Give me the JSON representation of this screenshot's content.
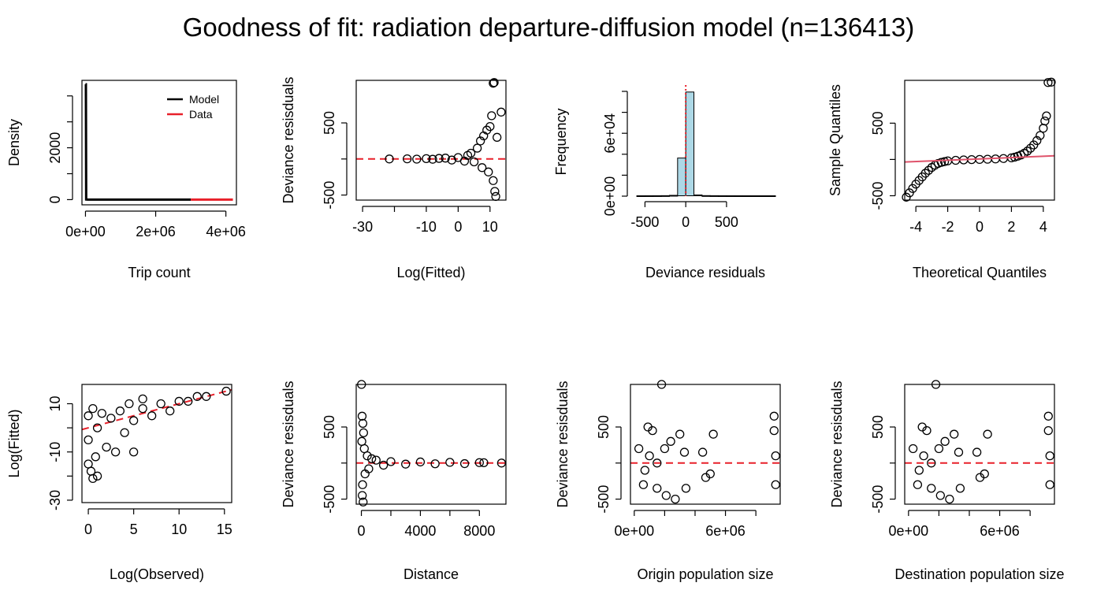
{
  "title": "Goodness of fit: radiation departure-diffusion model (n=136413)",
  "colors": {
    "ink": "#000000",
    "reference": "#e8202a",
    "qqline": "#df536b",
    "histFill": "#add8e6"
  },
  "chart_data": [
    {
      "type": "line",
      "xlabel": "Trip count",
      "ylabel": "Density",
      "xlim": [
        -100000,
        4300000
      ],
      "ylim": [
        -200,
        4600
      ],
      "xticks": [
        0,
        2000000,
        4000000
      ],
      "xtick_labels": [
        "0e+00",
        "2e+06",
        "4e+06"
      ],
      "yticks": [
        0,
        1000,
        2000,
        3000,
        4000
      ],
      "ytick_labels": [
        "0",
        "",
        "2000",
        "",
        ""
      ],
      "legend": {
        "position": "top-right",
        "entries": [
          {
            "label": "Model",
            "color": "#000000"
          },
          {
            "label": "Data",
            "color": "#e8202a"
          }
        ]
      },
      "series": [
        {
          "name": "Model",
          "color": "#000000",
          "x": [
            0,
            12000,
            20000,
            60000,
            3000000
          ],
          "y": [
            4450,
            4450,
            5,
            2,
            0
          ]
        },
        {
          "name": "Data",
          "color": "#e8202a",
          "x": [
            3000000,
            4200000
          ],
          "y": [
            0,
            0
          ]
        }
      ]
    },
    {
      "type": "scatter",
      "xlabel": "Log(Fitted)",
      "ylabel": "Deviance resisduals",
      "xlim": [
        -32,
        15
      ],
      "ylim": [
        -570,
        1090
      ],
      "xticks": [
        -30,
        -20,
        -10,
        0,
        10
      ],
      "xtick_labels": [
        "-30",
        "",
        "-10",
        "0",
        "10"
      ],
      "yticks": [
        -500,
        0,
        500
      ],
      "ytick_labels": [
        "-500",
        "",
        "500"
      ],
      "reference_line": {
        "y": 0,
        "style": "dashed",
        "color": "#e8202a"
      },
      "points": [
        [
          -21.6,
          0
        ],
        [
          -16,
          2
        ],
        [
          -13,
          -2
        ],
        [
          -10,
          5
        ],
        [
          -8,
          -4
        ],
        [
          -6,
          8
        ],
        [
          -4,
          12
        ],
        [
          -2,
          -15
        ],
        [
          0,
          20
        ],
        [
          2,
          -30
        ],
        [
          3,
          50
        ],
        [
          4,
          80
        ],
        [
          5,
          -40
        ],
        [
          6,
          150
        ],
        [
          7,
          250
        ],
        [
          7.5,
          -120
        ],
        [
          8,
          320
        ],
        [
          9,
          400
        ],
        [
          9.5,
          -180
        ],
        [
          10,
          450
        ],
        [
          11,
          -300
        ],
        [
          11.5,
          -450
        ],
        [
          11.8,
          -520
        ],
        [
          11,
          1050
        ],
        [
          11.3,
          1060
        ],
        [
          12.2,
          300
        ],
        [
          13.5,
          650
        ],
        [
          10.5,
          600
        ]
      ]
    },
    {
      "type": "bar",
      "xlabel": "Deviance residuals",
      "ylabel": "Frequency",
      "xlim": [
        -620,
        1100
      ],
      "ylim": [
        0,
        106000
      ],
      "xticks": [
        -500,
        0,
        500
      ],
      "xtick_labels": [
        "-500",
        "0",
        "500"
      ],
      "yticks": [
        0,
        20000,
        40000,
        60000,
        80000,
        100000
      ],
      "ytick_labels": [
        "0e+00",
        "",
        "",
        "6e+04",
        "",
        ""
      ],
      "bin_edges": [
        -600,
        -500,
        -400,
        -300,
        -200,
        -100,
        0,
        100,
        200,
        300,
        400,
        500,
        600,
        700,
        800,
        900,
        1000,
        1100
      ],
      "values": [
        10,
        20,
        40,
        100,
        400,
        36000,
        99000,
        800,
        150,
        60,
        30,
        15,
        10,
        5,
        3,
        2,
        2
      ],
      "reference_line": {
        "x": 0,
        "style": "dotted",
        "color": "#e8202a"
      }
    },
    {
      "type": "scatter",
      "xlabel": "Theoretical Quantiles",
      "ylabel": "Sample Quantiles",
      "xlim": [
        -4.7,
        4.7
      ],
      "ylim": [
        -560,
        1090
      ],
      "xticks": [
        -4,
        -2,
        0,
        2,
        4
      ],
      "xtick_labels": [
        "-4",
        "-2",
        "0",
        "2",
        "4"
      ],
      "yticks": [
        -500,
        0,
        500
      ],
      "ytick_labels": [
        "-500",
        "",
        "500"
      ],
      "qq_line": {
        "x1": -4.7,
        "y1": -35,
        "x2": 4.7,
        "y2": 50,
        "color": "#df536b"
      },
      "points": [
        [
          -4.6,
          -520
        ],
        [
          -4.4,
          -460
        ],
        [
          -4.2,
          -400
        ],
        [
          -4.0,
          -340
        ],
        [
          -3.8,
          -290
        ],
        [
          -3.6,
          -240
        ],
        [
          -3.4,
          -190
        ],
        [
          -3.2,
          -150
        ],
        [
          -3.0,
          -110
        ],
        [
          -2.8,
          -80
        ],
        [
          -2.6,
          -55
        ],
        [
          -2.4,
          -40
        ],
        [
          -2.2,
          -30
        ],
        [
          -2.0,
          -20
        ],
        [
          -1.5,
          -12
        ],
        [
          -1.0,
          -6
        ],
        [
          -0.5,
          -2
        ],
        [
          0,
          0
        ],
        [
          0.5,
          3
        ],
        [
          1.0,
          7
        ],
        [
          1.5,
          13
        ],
        [
          2.0,
          22
        ],
        [
          2.2,
          32
        ],
        [
          2.4,
          45
        ],
        [
          2.6,
          62
        ],
        [
          2.8,
          85
        ],
        [
          3.0,
          115
        ],
        [
          3.2,
          155
        ],
        [
          3.4,
          200
        ],
        [
          3.6,
          260
        ],
        [
          3.8,
          330
        ],
        [
          4.0,
          430
        ],
        [
          4.1,
          530
        ],
        [
          4.2,
          600
        ],
        [
          4.3,
          1060
        ],
        [
          4.5,
          1065
        ]
      ]
    },
    {
      "type": "scatter",
      "xlabel": "Log(Observed)",
      "ylabel": "Log(Fitted)",
      "xlim": [
        -0.7,
        15.8
      ],
      "ylim": [
        -31,
        18
      ],
      "xticks": [
        0,
        5,
        10,
        15
      ],
      "xtick_labels": [
        "0",
        "5",
        "10",
        "15"
      ],
      "yticks": [
        -30,
        -20,
        -10,
        0,
        10
      ],
      "ytick_labels": [
        "-30",
        "",
        "-10",
        "",
        "10"
      ],
      "reference_line": {
        "x1": -0.7,
        "y1": -0.7,
        "x2": 15.8,
        "y2": 15.8,
        "style": "dashed",
        "color": "#e8202a"
      },
      "points": [
        [
          0,
          5
        ],
        [
          0,
          -5
        ],
        [
          0,
          -15
        ],
        [
          0.3,
          -18
        ],
        [
          0.5,
          8
        ],
        [
          0.8,
          -12
        ],
        [
          1,
          0
        ],
        [
          1,
          -20
        ],
        [
          1.5,
          6
        ],
        [
          2,
          -8
        ],
        [
          2.5,
          4
        ],
        [
          3,
          -10
        ],
        [
          3.5,
          7
        ],
        [
          4,
          -2
        ],
        [
          4.5,
          10
        ],
        [
          5,
          3
        ],
        [
          5,
          -10
        ],
        [
          6,
          8
        ],
        [
          6,
          12
        ],
        [
          7,
          5
        ],
        [
          8,
          10
        ],
        [
          9,
          7
        ],
        [
          10,
          11
        ],
        [
          11,
          11
        ],
        [
          12,
          13
        ],
        [
          13,
          13
        ],
        [
          15.2,
          15.2
        ],
        [
          0.5,
          -21
        ]
      ]
    },
    {
      "type": "scatter",
      "xlabel": "Distance",
      "ylabel": "Deviance resisduals",
      "xlim": [
        -350,
        9800
      ],
      "ylim": [
        -570,
        1090
      ],
      "xticks": [
        0,
        2000,
        4000,
        6000,
        8000
      ],
      "xtick_labels": [
        "0",
        "",
        "4000",
        "",
        "8000"
      ],
      "yticks": [
        -500,
        0,
        500
      ],
      "ytick_labels": [
        "-500",
        "",
        "500"
      ],
      "reference_line": {
        "y": 0,
        "style": "dashed",
        "color": "#e8202a"
      },
      "points": [
        [
          10,
          1090
        ],
        [
          50,
          650
        ],
        [
          100,
          550
        ],
        [
          150,
          420
        ],
        [
          30,
          300
        ],
        [
          80,
          -300
        ],
        [
          60,
          -450
        ],
        [
          120,
          -540
        ],
        [
          200,
          200
        ],
        [
          250,
          -150
        ],
        [
          400,
          100
        ],
        [
          500,
          -80
        ],
        [
          700,
          60
        ],
        [
          1000,
          40
        ],
        [
          1500,
          -30
        ],
        [
          2000,
          20
        ],
        [
          3000,
          -15
        ],
        [
          4000,
          15
        ],
        [
          5000,
          -10
        ],
        [
          6000,
          10
        ],
        [
          7000,
          -8
        ],
        [
          8000,
          6
        ],
        [
          8300,
          5
        ],
        [
          9500,
          0
        ]
      ]
    },
    {
      "type": "scatter",
      "xlabel": "Origin population size",
      "ylabel": "Deviance resisduals",
      "xlim": [
        -250000,
        9600000
      ],
      "ylim": [
        -570,
        1090
      ],
      "xticks": [
        0,
        2000000,
        4000000,
        6000000,
        8000000
      ],
      "xtick_labels": [
        "0e+00",
        "",
        "",
        "6e+06",
        ""
      ],
      "yticks": [
        -500,
        0,
        500
      ],
      "ytick_labels": [
        "-500",
        "",
        "500"
      ],
      "reference_line": {
        "y": 0,
        "style": "dashed",
        "color": "#e8202a"
      },
      "points": [
        [
          300000,
          200
        ],
        [
          600000,
          -300
        ],
        [
          900000,
          500
        ],
        [
          1200000,
          450
        ],
        [
          1500000,
          -350
        ],
        [
          1800000,
          1090
        ],
        [
          2100000,
          -450
        ],
        [
          2400000,
          300
        ],
        [
          2700000,
          -500
        ],
        [
          3000000,
          400
        ],
        [
          3300000,
          150
        ],
        [
          3400000,
          -350
        ],
        [
          4500000,
          150
        ],
        [
          4700000,
          -200
        ],
        [
          5200000,
          400
        ],
        [
          5000000,
          -150
        ],
        [
          9200000,
          650
        ],
        [
          9200000,
          450
        ],
        [
          9300000,
          100
        ],
        [
          9300000,
          -300
        ],
        [
          1000000,
          100
        ],
        [
          700000,
          -100
        ],
        [
          2000000,
          200
        ],
        [
          1500000,
          0
        ]
      ]
    },
    {
      "type": "scatter",
      "xlabel": "Destination population size",
      "ylabel": "Deviance resisduals",
      "xlim": [
        -250000,
        9600000
      ],
      "ylim": [
        -570,
        1090
      ],
      "xticks": [
        0,
        2000000,
        4000000,
        6000000,
        8000000
      ],
      "xtick_labels": [
        "0e+00",
        "",
        "",
        "6e+06",
        ""
      ],
      "yticks": [
        -500,
        0,
        500
      ],
      "ytick_labels": [
        "-500",
        "",
        "500"
      ],
      "reference_line": {
        "y": 0,
        "style": "dashed",
        "color": "#e8202a"
      },
      "points": [
        [
          300000,
          200
        ],
        [
          600000,
          -300
        ],
        [
          900000,
          500
        ],
        [
          1200000,
          450
        ],
        [
          1500000,
          -350
        ],
        [
          1800000,
          1090
        ],
        [
          2100000,
          -450
        ],
        [
          2400000,
          300
        ],
        [
          2700000,
          -500
        ],
        [
          3000000,
          400
        ],
        [
          3300000,
          150
        ],
        [
          3400000,
          -350
        ],
        [
          4500000,
          150
        ],
        [
          4700000,
          -200
        ],
        [
          5200000,
          400
        ],
        [
          5000000,
          -150
        ],
        [
          9200000,
          650
        ],
        [
          9200000,
          450
        ],
        [
          9300000,
          100
        ],
        [
          9300000,
          -300
        ],
        [
          1000000,
          100
        ],
        [
          700000,
          -100
        ],
        [
          2000000,
          200
        ],
        [
          1500000,
          0
        ]
      ]
    }
  ]
}
